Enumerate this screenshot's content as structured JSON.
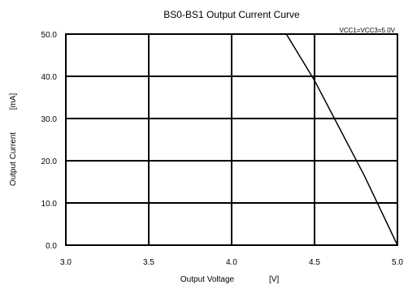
{
  "chart_data": {
    "type": "line",
    "title": "BS0-BS1 Output Current Curve",
    "annotation": "VCC1=VCC3=5.0V",
    "xlabel": "Output Voltage",
    "xunit": "[V]",
    "ylabel": "Output Current",
    "yunit": "[mA]",
    "xlim": [
      3.0,
      5.0
    ],
    "ylim": [
      0.0,
      50.0
    ],
    "xticks": [
      "3.0",
      "3.5",
      "4.0",
      "4.5",
      "5.0"
    ],
    "yticks": [
      "0.0",
      "10.0",
      "20.0",
      "30.0",
      "40.0",
      "50.0"
    ],
    "grid": true,
    "series": [
      {
        "x": [
          4.33,
          4.5,
          4.8,
          5.0
        ],
        "y": [
          50.0,
          39.0,
          16.5,
          0.0
        ]
      }
    ]
  }
}
